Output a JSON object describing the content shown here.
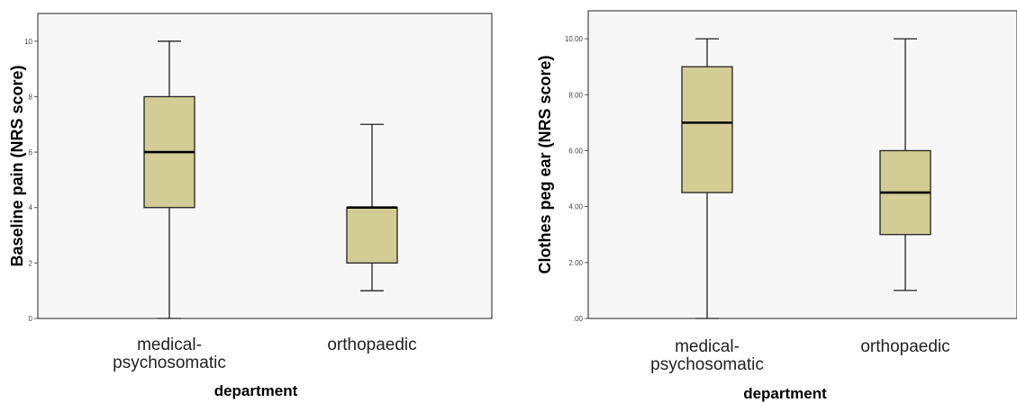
{
  "colors": {
    "plot_bg": "#f7f7f7",
    "box_fill": "#d4cc95",
    "stroke": "#222222"
  },
  "chart_data": [
    {
      "type": "box",
      "title": "",
      "xlabel": "department",
      "ylabel": "Baseline pain (NRS score)",
      "categories": [
        "medical-psychosomatic",
        "orthopaedic"
      ],
      "category_lines": [
        [
          "medical-",
          "psychosomatic"
        ],
        [
          "orthopaedic"
        ]
      ],
      "ylim": [
        0,
        11
      ],
      "yticks": [
        0,
        2,
        4,
        6,
        8,
        10
      ],
      "ytick_labels": [
        "0",
        "2",
        "4",
        "6",
        "8",
        "10"
      ],
      "boxes": [
        {
          "min": 0,
          "q1": 4,
          "median": 6,
          "q3": 8,
          "max": 10
        },
        {
          "min": 1,
          "q1": 2,
          "median": 4,
          "q3": 4,
          "max": 7
        }
      ],
      "grid": false,
      "legend": "none"
    },
    {
      "type": "box",
      "title": "",
      "xlabel": "department",
      "ylabel": "Clothes peg ear (NRS score)",
      "categories": [
        "medical-psychosomatic",
        "orthopaedic"
      ],
      "category_lines": [
        [
          "medical-",
          "psychosomatic"
        ],
        [
          "orthopaedic"
        ]
      ],
      "ylim": [
        0,
        11
      ],
      "yticks": [
        0,
        2,
        4,
        6,
        8,
        10
      ],
      "ytick_labels": [
        ".00",
        "2.00",
        "4.00",
        "6.00",
        "8.00",
        "10.00"
      ],
      "boxes": [
        {
          "min": 0,
          "q1": 4.5,
          "median": 7,
          "q3": 9,
          "max": 10
        },
        {
          "min": 1,
          "q1": 3,
          "median": 4.5,
          "q3": 6,
          "max": 10
        }
      ],
      "grid": false,
      "legend": "none"
    }
  ]
}
